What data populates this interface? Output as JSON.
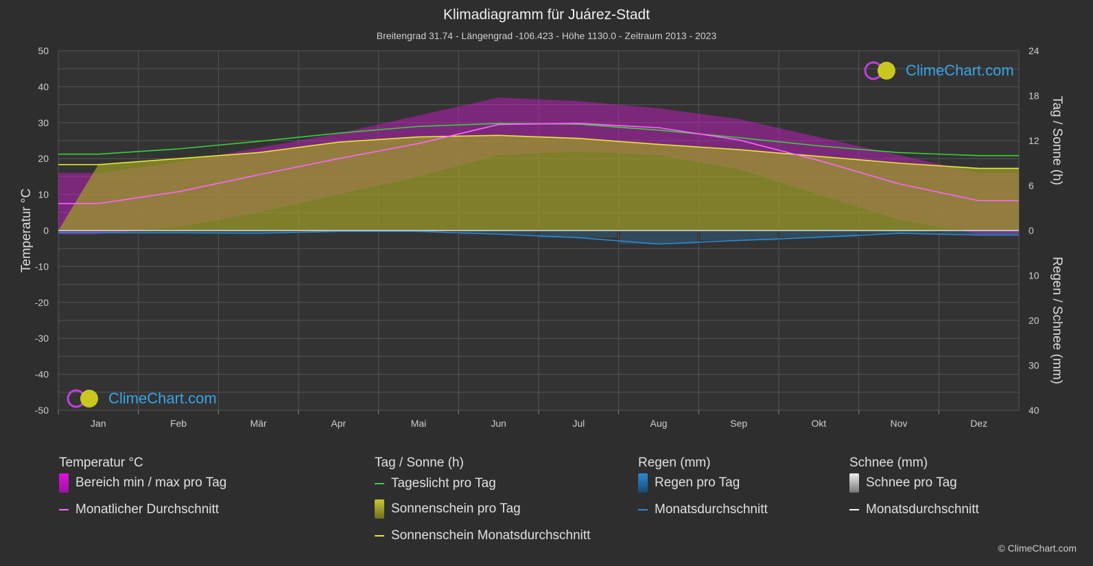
{
  "title": "Klimadiagramm für Juárez-Stadt",
  "subtitle": "Breitengrad 31.74 - Längengrad -106.423 - Höhe 1130.0 - Zeitraum 2013 - 2023",
  "logo_text": "ClimeChart.com",
  "copyright": "© ClimeChart.com",
  "legend": {
    "temp": {
      "heading": "Temperatur °C",
      "range": "Bereich min / max pro Tag",
      "avg": "Monatlicher Durchschnitt"
    },
    "sun": {
      "heading": "Tag / Sonne (h)",
      "daylight": "Tageslicht pro Tag",
      "sunshine": "Sonnenschein pro Tag",
      "sun_avg": "Sonnenschein Monatsdurchschnitt"
    },
    "rain": {
      "heading": "Regen (mm)",
      "per_day": "Regen pro Tag",
      "avg": "Monatsdurchschnitt"
    },
    "snow": {
      "heading": "Schnee (mm)",
      "per_day": "Schnee pro Tag",
      "avg": "Monatsdurchschnitt"
    }
  },
  "colors": {
    "background": "#2e2e2e",
    "grid": "#555555",
    "temp_range": "#d21bd2",
    "temp_avg": "#ff66ff",
    "daylight": "#3ad13a",
    "sunshine_fill": "#9a9a2a",
    "sunshine_avg": "#e8e83a",
    "rain": "#2a8ad4",
    "rain_avg": "#2a8ad4",
    "snow_avg": "#ffffff",
    "logo_text": "#35a6e8"
  },
  "chart_data": {
    "type": "line",
    "categories": [
      "Jan",
      "Feb",
      "Mär",
      "Apr",
      "Mai",
      "Jun",
      "Jul",
      "Aug",
      "Sep",
      "Okt",
      "Nov",
      "Dez"
    ],
    "y_left": {
      "label": "Temperatur °C",
      "min": -50,
      "max": 50,
      "ticks": [
        50,
        40,
        30,
        20,
        10,
        0,
        -10,
        -20,
        -30,
        -40,
        -50
      ]
    },
    "y_right_top": {
      "label": "Tag / Sonne (h)",
      "min": 0,
      "max": 24,
      "ticks": [
        24,
        18,
        12,
        6,
        0
      ]
    },
    "y_right_bottom": {
      "label": "Regen / Schnee (mm)",
      "min": 0,
      "max": 40,
      "ticks": [
        0,
        10,
        20,
        30,
        40
      ]
    },
    "grid": true,
    "series": [
      {
        "name": "Monatlicher Durchschnitt",
        "axis": "temp",
        "values": [
          7.5,
          10.8,
          15.5,
          20.0,
          24.2,
          29.5,
          29.8,
          28.6,
          25.2,
          19.5,
          13.0,
          8.3
        ]
      },
      {
        "name": "Tageslicht pro Tag",
        "axis": "hours",
        "values": [
          10.2,
          10.9,
          11.9,
          13.0,
          13.9,
          14.3,
          14.2,
          13.4,
          12.4,
          11.3,
          10.4,
          10.0
        ]
      },
      {
        "name": "Sonnenschein Monatsdurchschnitt",
        "axis": "hours",
        "values": [
          8.8,
          9.6,
          10.4,
          11.8,
          12.5,
          12.7,
          12.3,
          11.5,
          10.8,
          9.9,
          9.0,
          8.3
        ]
      },
      {
        "name": "Regen Monatsdurchschnitt",
        "axis": "precip",
        "values": [
          0.5,
          0.5,
          0.6,
          0.2,
          0.2,
          0.8,
          1.6,
          3.0,
          2.2,
          1.5,
          0.6,
          1.0
        ]
      },
      {
        "name": "Schnee Monatsdurchschnitt",
        "axis": "precip",
        "values": [
          0,
          0,
          0,
          0,
          0,
          0,
          0,
          0,
          0,
          0,
          0,
          0
        ]
      }
    ],
    "temp_range": {
      "min": [
        -1,
        1,
        5,
        10,
        15,
        21,
        22,
        21,
        17,
        10,
        3,
        -1
      ],
      "max": [
        16,
        19,
        23,
        27,
        32,
        37,
        36,
        34,
        31,
        26,
        21,
        16
      ]
    }
  }
}
